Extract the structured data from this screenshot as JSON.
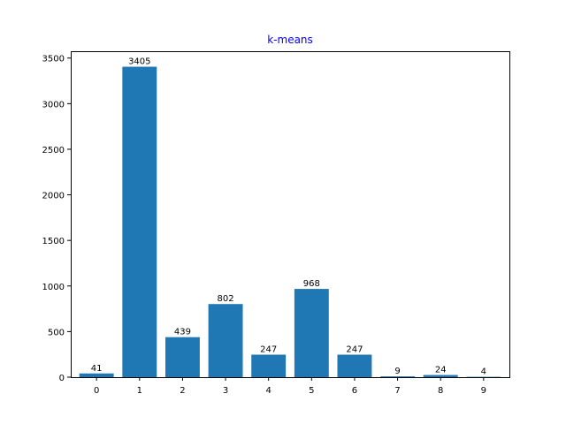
{
  "chart_data": {
    "type": "bar",
    "title": "k-means",
    "xlabel": "",
    "ylabel": "",
    "categories": [
      "0",
      "1",
      "2",
      "3",
      "4",
      "5",
      "6",
      "7",
      "8",
      "9"
    ],
    "values": [
      41,
      3405,
      439,
      802,
      247,
      968,
      247,
      9,
      24,
      4
    ],
    "data_labels": [
      "41",
      "3405",
      "439",
      "802",
      "247",
      "968",
      "247",
      "9",
      "24",
      "4"
    ],
    "ylim": [
      0,
      3575
    ],
    "yticks": [
      0,
      500,
      1000,
      1500,
      2000,
      2500,
      3000,
      3500
    ],
    "ytick_labels": [
      "0",
      "500",
      "1000",
      "1500",
      "2000",
      "2500",
      "3000",
      "3500"
    ],
    "grid": false,
    "legend": "none",
    "colors": {
      "bar": "#1f77b4",
      "title": "#0000ff",
      "axis": "#000000"
    }
  }
}
